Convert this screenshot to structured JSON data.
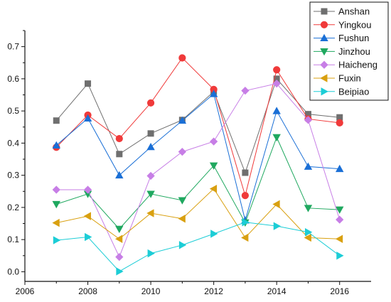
{
  "chart_data": {
    "type": "line",
    "title": "",
    "xlabel": "",
    "ylabel": "",
    "x": [
      2007,
      2008,
      2009,
      2010,
      2011,
      2012,
      2013,
      2014,
      2015,
      2016
    ],
    "xlim": [
      2006,
      2017
    ],
    "ylim": [
      -0.03,
      0.75
    ],
    "x_ticks": [
      2006,
      2008,
      2010,
      2012,
      2014,
      2016
    ],
    "y_ticks": [
      0.0,
      0.1,
      0.2,
      0.3,
      0.4,
      0.5,
      0.6,
      0.7
    ],
    "grid": false,
    "legend_position": "top-right",
    "series": [
      {
        "name": "Anshan",
        "color": "#6f6f6f",
        "marker": "square",
        "values": [
          0.47,
          0.585,
          0.366,
          0.43,
          0.472,
          0.56,
          0.308,
          0.6,
          0.49,
          0.48
        ]
      },
      {
        "name": "Yingkou",
        "color": "#f03a3a",
        "marker": "circle",
        "values": [
          0.387,
          0.487,
          0.414,
          0.525,
          0.665,
          0.567,
          0.237,
          0.628,
          0.475,
          0.463
        ]
      },
      {
        "name": "Fushun",
        "color": "#1a6fd6",
        "marker": "triangle-up",
        "values": [
          0.393,
          0.477,
          0.3,
          0.388,
          0.47,
          0.553,
          0.16,
          0.5,
          0.327,
          0.32
        ]
      },
      {
        "name": "Jinzhou",
        "color": "#1fa85f",
        "marker": "triangle-down",
        "values": [
          0.21,
          0.242,
          0.133,
          0.242,
          0.222,
          0.33,
          0.153,
          0.418,
          0.198,
          0.193
        ]
      },
      {
        "name": "Haicheng",
        "color": "#c77ee6",
        "marker": "diamond",
        "values": [
          0.255,
          0.255,
          0.046,
          0.298,
          0.373,
          0.405,
          0.563,
          0.585,
          0.472,
          0.162
        ]
      },
      {
        "name": "Fuxin",
        "color": "#d9a010",
        "marker": "triangle-left",
        "values": [
          0.152,
          0.173,
          0.102,
          0.182,
          0.165,
          0.258,
          0.106,
          0.21,
          0.106,
          0.102
        ]
      },
      {
        "name": "Beipiao",
        "color": "#1ccdd6",
        "marker": "triangle-right",
        "values": [
          0.098,
          0.108,
          0.001,
          0.057,
          0.083,
          0.118,
          0.154,
          0.142,
          0.123,
          0.05
        ]
      }
    ]
  }
}
